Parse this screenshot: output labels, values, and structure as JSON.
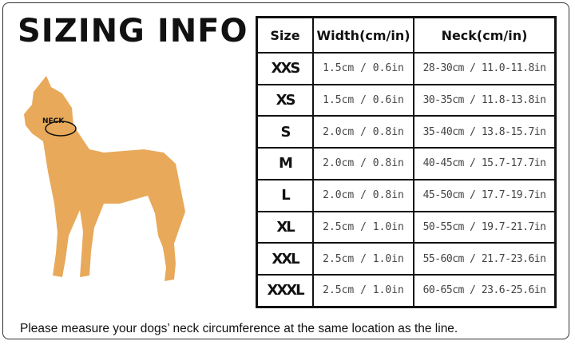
{
  "title": "SIZING INFO",
  "dog_label": "NECK",
  "colors": {
    "dog": "#E8A95A",
    "border": "#111111"
  },
  "table": {
    "headers": [
      "Size",
      "Width(cm/in)",
      "Neck(cm/in)"
    ],
    "rows": [
      {
        "size": "XXS",
        "width": "1.5cm / 0.6in",
        "neck": "28-30cm / 11.0-11.8in"
      },
      {
        "size": "XS",
        "width": "1.5cm / 0.6in",
        "neck": "30-35cm / 11.8-13.8in"
      },
      {
        "size": "S",
        "width": "2.0cm / 0.8in",
        "neck": "35-40cm / 13.8-15.7in"
      },
      {
        "size": "M",
        "width": "2.0cm / 0.8in",
        "neck": "40-45cm / 15.7-17.7in"
      },
      {
        "size": "L",
        "width": "2.0cm / 0.8in",
        "neck": "45-50cm / 17.7-19.7in"
      },
      {
        "size": "XL",
        "width": "2.5cm / 1.0in",
        "neck": "50-55cm / 19.7-21.7in"
      },
      {
        "size": "XXL",
        "width": "2.5cm / 1.0in",
        "neck": "55-60cm / 21.7-23.6in"
      },
      {
        "size": "XXXL",
        "width": "2.5cm / 1.0in",
        "neck": "60-65cm / 23.6-25.6in"
      }
    ]
  },
  "note": "Please measure your dogs’  neck circumference at the same location as the line."
}
